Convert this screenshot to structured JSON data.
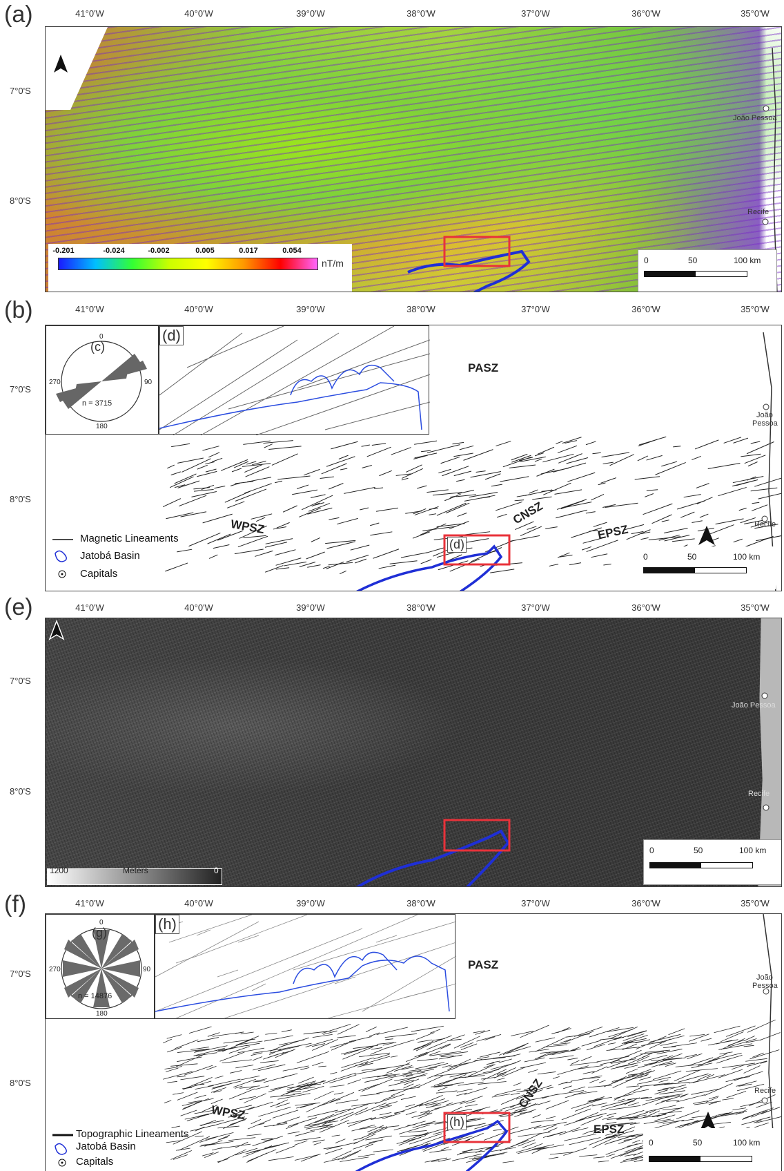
{
  "panels": {
    "a": {
      "label": "(a)"
    },
    "b": {
      "label": "(b)"
    },
    "e": {
      "label": "(e)"
    },
    "f": {
      "label": "(f)"
    }
  },
  "lon_labels": [
    "41°0'W",
    "40°0'W",
    "39°0'W",
    "38°0'W",
    "37°0'W",
    "36°0'W",
    "35°0'W"
  ],
  "lat_labels": [
    "7°0'S",
    "8°0'S"
  ],
  "cities": {
    "joao": "João Pessoa",
    "joao1": "João",
    "joao2": "Pessoa",
    "recife": "Recife"
  },
  "scalebar": {
    "t0": "0",
    "t1": "50",
    "t2": "100 km"
  },
  "colorbar": {
    "ticks": [
      "-0.201",
      "-0.024",
      "-0.002",
      "0.005",
      "0.017",
      "0.054"
    ],
    "unit": "nT/m",
    "colors": [
      "#1a1aff",
      "#00bfff",
      "#33ff33",
      "#ccff00",
      "#ffff00",
      "#ff9900",
      "#ff0000",
      "#ff66ff"
    ]
  },
  "shear_zones": {
    "pasz": "PASZ",
    "cnsz": "CNSZ",
    "wpsz": "WPSZ",
    "epsz": "EPSZ"
  },
  "panel_b": {
    "inset_label": "(d)",
    "rose_label": "(c)",
    "rose_n": "n = 3715",
    "box_label": "(d)",
    "legend": [
      "Magnetic Lineaments",
      "Jatobá Basin",
      "Capitals"
    ]
  },
  "panel_e": {
    "elev_max": "1200",
    "elev_unit": "Meters",
    "elev_min": "0"
  },
  "panel_f": {
    "inset_label": "(h)",
    "rose_label": "(g)",
    "rose_n": "n = 14876",
    "box_label": "(h)",
    "legend": [
      "Topographic Lineaments",
      "Jatobá Basin",
      "Capitals"
    ]
  },
  "rose_ticks": {
    "n": "0",
    "e": "90",
    "s": "180",
    "w": "270"
  },
  "colors": {
    "basin": "#1f2fd6",
    "box": "#e8323a",
    "hillshade": "#3a3a3a",
    "sea": "#b8b8b8"
  }
}
